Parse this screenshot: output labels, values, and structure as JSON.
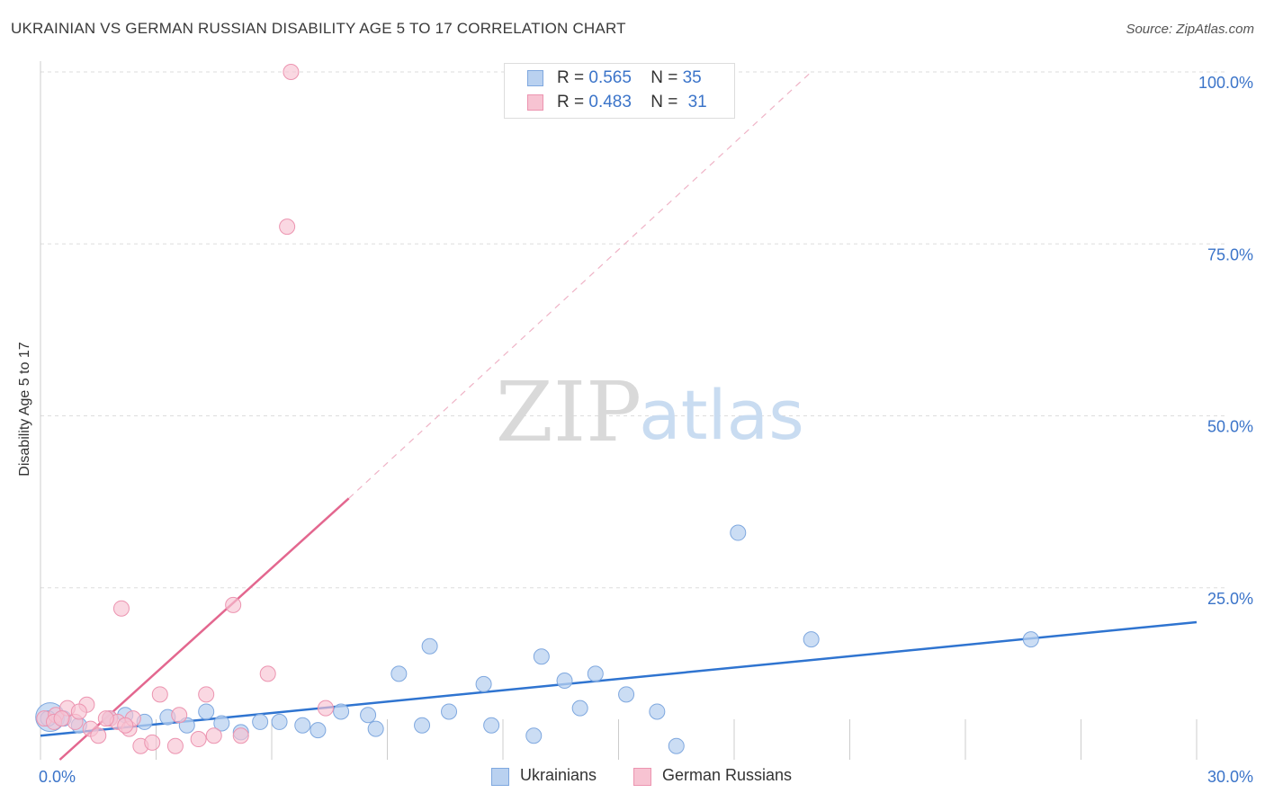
{
  "title": "UKRAINIAN VS GERMAN RUSSIAN DISABILITY AGE 5 TO 17 CORRELATION CHART",
  "source": "Source: ZipAtlas.com",
  "watermark": {
    "zip": "ZIP",
    "atlas": "atlas"
  },
  "colors": {
    "blue_fill": "#b9d1f0",
    "blue_stroke": "#7fa8df",
    "blue_line": "#2f74d0",
    "pink_fill": "#f7c3d2",
    "pink_stroke": "#ec94b0",
    "pink_line": "#e3678f",
    "tick_text": "#3b74c9",
    "grid": "#dddddd"
  },
  "legend": {
    "rows": [
      {
        "r_label": "R = ",
        "r_value": "0.565",
        "n_label": "N = ",
        "n_value": "35",
        "series": "blue"
      },
      {
        "r_label": "R = ",
        "r_value": "0.483",
        "n_label": "N = ",
        "n_value": "31",
        "series": "pink"
      }
    ],
    "bottom": [
      "Ukrainians",
      "German Russians"
    ]
  },
  "chart_data": {
    "type": "scatter",
    "title": "UKRAINIAN VS GERMAN RUSSIAN DISABILITY AGE 5 TO 17 CORRELATION CHART",
    "xlabel": "",
    "ylabel": "Disability Age 5 to 17",
    "xlim": [
      0,
      30
    ],
    "ylim": [
      0,
      100
    ],
    "x_tick_labels": [
      "0.0%",
      "30.0%"
    ],
    "y_ticks": [
      25,
      50,
      75,
      100
    ],
    "y_tick_labels": [
      "25.0%",
      "50.0%",
      "75.0%",
      "100.0%"
    ],
    "series": [
      {
        "name": "Ukrainians",
        "color": "blue",
        "points": [
          [
            0.2,
            6.0
          ],
          [
            0.6,
            6.0
          ],
          [
            1.0,
            5.0
          ],
          [
            1.8,
            6.0
          ],
          [
            2.2,
            6.5
          ],
          [
            2.7,
            5.5
          ],
          [
            3.3,
            6.2
          ],
          [
            3.8,
            5.0
          ],
          [
            4.3,
            7.0
          ],
          [
            4.7,
            5.3
          ],
          [
            5.2,
            4.0
          ],
          [
            5.7,
            5.5
          ],
          [
            6.2,
            5.5
          ],
          [
            6.8,
            5.0
          ],
          [
            7.2,
            4.3
          ],
          [
            7.8,
            7.0
          ],
          [
            8.5,
            6.5
          ],
          [
            8.7,
            4.5
          ],
          [
            9.3,
            12.5
          ],
          [
            9.9,
            5.0
          ],
          [
            10.1,
            16.5
          ],
          [
            10.6,
            7.0
          ],
          [
            11.5,
            11.0
          ],
          [
            11.7,
            5.0
          ],
          [
            12.8,
            3.5
          ],
          [
            13.0,
            15.0
          ],
          [
            13.6,
            11.5
          ],
          [
            14.0,
            7.5
          ],
          [
            14.4,
            12.5
          ],
          [
            15.2,
            9.5
          ],
          [
            16.0,
            7.0
          ],
          [
            16.5,
            2.0
          ],
          [
            18.1,
            33.0
          ],
          [
            20.0,
            17.5
          ],
          [
            25.7,
            17.5
          ]
        ],
        "trend": [
          [
            0,
            3.5
          ],
          [
            30,
            20.0
          ]
        ]
      },
      {
        "name": "German Russians",
        "color": "pink",
        "points": [
          [
            0.1,
            6.0
          ],
          [
            0.4,
            6.5
          ],
          [
            0.7,
            7.5
          ],
          [
            0.9,
            5.5
          ],
          [
            1.2,
            8.0
          ],
          [
            1.3,
            4.5
          ],
          [
            1.5,
            3.5
          ],
          [
            1.8,
            6.0
          ],
          [
            2.0,
            5.5
          ],
          [
            2.1,
            22.0
          ],
          [
            2.3,
            4.5
          ],
          [
            2.4,
            6.0
          ],
          [
            2.6,
            2.0
          ],
          [
            2.9,
            2.5
          ],
          [
            3.1,
            9.5
          ],
          [
            3.5,
            2.0
          ],
          [
            3.6,
            6.5
          ],
          [
            4.1,
            3.0
          ],
          [
            4.3,
            9.5
          ],
          [
            4.5,
            3.5
          ],
          [
            5.0,
            22.5
          ],
          [
            5.2,
            3.5
          ],
          [
            5.9,
            12.5
          ],
          [
            6.4,
            77.5
          ],
          [
            6.5,
            100.0
          ],
          [
            7.4,
            7.5
          ],
          [
            0.35,
            5.5
          ],
          [
            1.7,
            6.0
          ],
          [
            0.55,
            6.0
          ],
          [
            1.0,
            7.0
          ],
          [
            2.2,
            5.0
          ]
        ],
        "trend_solid": [
          [
            0.5,
            0.0
          ],
          [
            8.0,
            38.0
          ]
        ],
        "trend_dashed": [
          [
            8.0,
            38.0
          ],
          [
            20.0,
            100.0
          ]
        ]
      }
    ]
  }
}
